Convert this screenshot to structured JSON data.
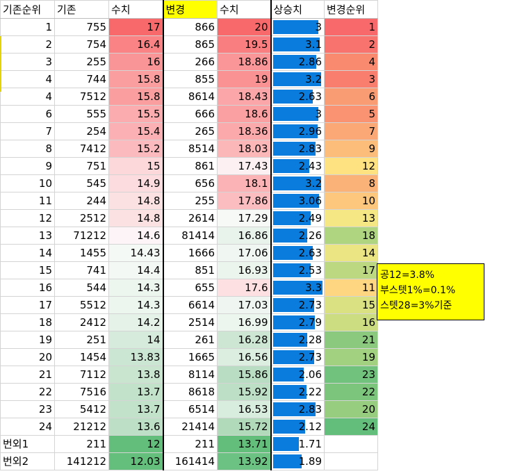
{
  "headers": [
    "기존순위",
    "기존",
    "수치",
    "변경",
    "수치",
    "상승치",
    "변경순위"
  ],
  "rows": [
    {
      "rank": "1",
      "orig": "755",
      "v1": "17",
      "new": "866",
      "v2": "20",
      "rise": "3",
      "newrank": "1",
      "rise_num": 3,
      "c1": "#f8696b",
      "c2": "#f8696b",
      "c3": "#f8696b"
    },
    {
      "rank": "2",
      "orig": "754",
      "v1": "16.4",
      "new": "865",
      "v2": "19.5",
      "rise": "3.1",
      "newrank": "2",
      "rise_num": 3.1,
      "c1": "#f98385",
      "c2": "#f97e80",
      "c3": "#f8736d"
    },
    {
      "rank": "3",
      "orig": "255",
      "v1": "16",
      "new": "266",
      "v2": "18.86",
      "rise": "2.86",
      "newrank": "4",
      "rise_num": 2.86,
      "c1": "#fa9597",
      "c2": "#fa9698",
      "c3": "#f98a70"
    },
    {
      "rank": "4",
      "orig": "744",
      "v1": "15.8",
      "new": "855",
      "v2": "19",
      "rise": "3.2",
      "newrank": "3",
      "rise_num": 3.2,
      "c1": "#fa9ea0",
      "c2": "#fa9193",
      "c3": "#f97e6e"
    },
    {
      "rank": "4",
      "orig": "7512",
      "v1": "15.8",
      "new": "8614",
      "v2": "18.43",
      "rise": "2.63",
      "newrank": "6",
      "rise_num": 2.63,
      "c1": "#fa9ea0",
      "c2": "#fba6a8",
      "c3": "#fa9c73"
    },
    {
      "rank": "6",
      "orig": "555",
      "v1": "15.5",
      "new": "666",
      "v2": "18.6",
      "rise": "3",
      "newrank": "5",
      "rise_num": 3,
      "c1": "#fbacae",
      "c2": "#fba0a2",
      "c3": "#f99372"
    },
    {
      "rank": "7",
      "orig": "254",
      "v1": "15.4",
      "new": "265",
      "v2": "18.36",
      "rise": "2.96",
      "newrank": "7",
      "rise_num": 2.96,
      "c1": "#fbb1b3",
      "c2": "#fba9ab",
      "c3": "#fba876"
    },
    {
      "rank": "8",
      "orig": "7412",
      "v1": "15.2",
      "new": "8514",
      "v2": "18.03",
      "rise": "2.83",
      "newrank": "9",
      "rise_num": 2.83,
      "c1": "#fbbabd",
      "c2": "#fbb6b8",
      "c3": "#fcbd7b"
    },
    {
      "rank": "9",
      "orig": "751",
      "v1": "15",
      "new": "861",
      "v2": "17.43",
      "rise": "2.43",
      "newrank": "12",
      "rise_num": 2.43,
      "c1": "#fcd8da",
      "c2": "#fcf0f2",
      "c3": "#fee282"
    },
    {
      "rank": "10",
      "orig": "545",
      "v1": "14.9",
      "new": "656",
      "v2": "18.1",
      "rise": "3.2",
      "newrank": "8",
      "rise_num": 3.2,
      "c1": "#fcdcde",
      "c2": "#fbb3b5",
      "c3": "#fbb278"
    },
    {
      "rank": "11",
      "orig": "244",
      "v1": "14.8",
      "new": "255",
      "v2": "17.86",
      "rise": "3.06",
      "newrank": "10",
      "rise_num": 3.06,
      "c1": "#fce1e3",
      "c2": "#fbbdc0",
      "c3": "#fdc87d"
    },
    {
      "rank": "12",
      "orig": "2512",
      "v1": "14.8",
      "new": "2614",
      "v2": "17.29",
      "rise": "2.49",
      "newrank": "13",
      "rise_num": 2.49,
      "c1": "#fce1e3",
      "c2": "#f7f9f7",
      "c3": "#f5e783"
    },
    {
      "rank": "13",
      "orig": "71212",
      "v1": "14.6",
      "new": "81414",
      "v2": "16.86",
      "rise": "2.26",
      "newrank": "18",
      "rise_num": 2.26,
      "c1": "#fcf4f6",
      "c2": "#e8f3eb",
      "c3": "#b0d580"
    },
    {
      "rank": "14",
      "orig": "1455",
      "v1": "14.43",
      "new": "1666",
      "v2": "17.06",
      "rise": "2.63",
      "newrank": "14",
      "rise_num": 2.63,
      "c1": "#f5f9f6",
      "c2": "#f0f7f2",
      "c3": "#ebe583"
    },
    {
      "rank": "15",
      "orig": "741",
      "v1": "14.4",
      "new": "851",
      "v2": "16.93",
      "rise": "2.53",
      "newrank": "17",
      "rise_num": 2.53,
      "c1": "#f3f8f4",
      "c2": "#ebf4ed",
      "c3": "#bcd881"
    },
    {
      "rank": "16",
      "orig": "544",
      "v1": "14.3",
      "new": "655",
      "v2": "17.6",
      "rise": "3.3",
      "newrank": "11",
      "rise_num": 3.3,
      "c1": "#ecf5ee",
      "c2": "#fce0e2",
      "c3": "#fed580"
    },
    {
      "rank": "17",
      "orig": "5512",
      "v1": "14.3",
      "new": "6614",
      "v2": "17.03",
      "rise": "2.73",
      "newrank": "15",
      "rise_num": 2.73,
      "c1": "#ecf5ee",
      "c2": "#eff6f1",
      "c3": "#dae182"
    },
    {
      "rank": "18",
      "orig": "2412",
      "v1": "14.2",
      "new": "2514",
      "v2": "16.99",
      "rise": "2.79",
      "newrank": "16",
      "rise_num": 2.79,
      "c1": "#e5f2e8",
      "c2": "#edf5ef",
      "c3": "#cbdc81"
    },
    {
      "rank": "19",
      "orig": "251",
      "v1": "14",
      "new": "261",
      "v2": "16.28",
      "rise": "2.28",
      "newrank": "21",
      "rise_num": 2.28,
      "c1": "#d7ebdc",
      "c2": "#cde6d3",
      "c3": "#8bc97e"
    },
    {
      "rank": "20",
      "orig": "1454",
      "v1": "13.83",
      "new": "1665",
      "v2": "16.56",
      "rise": "2.73",
      "newrank": "19",
      "rise_num": 2.73,
      "c1": "#cbe6d2",
      "c2": "#dbeee0",
      "c3": "#a2d17f"
    },
    {
      "rank": "21",
      "orig": "7112",
      "v1": "13.8",
      "new": "8114",
      "v2": "15.86",
      "rise": "2.06",
      "newrank": "23",
      "rise_num": 2.06,
      "c1": "#c9e5d0",
      "c2": "#b9ddc2",
      "c3": "#70c27c"
    },
    {
      "rank": "22",
      "orig": "7516",
      "v1": "13.7",
      "new": "8618",
      "v2": "15.92",
      "rise": "2.22",
      "newrank": "22",
      "rise_num": 2.22,
      "c1": "#c2e2ca",
      "c2": "#bcdfc5",
      "c3": "#7cc57d"
    },
    {
      "rank": "23",
      "orig": "5412",
      "v1": "13.7",
      "new": "6514",
      "v2": "16.53",
      "rise": "2.83",
      "newrank": "20",
      "rise_num": 2.83,
      "c1": "#c2e2ca",
      "c2": "#d9eddf",
      "c3": "#97cd7e"
    },
    {
      "rank": "24",
      "orig": "21212",
      "v1": "13.6",
      "new": "21414",
      "v2": "15.72",
      "rise": "2.12",
      "newrank": "24",
      "rise_num": 2.12,
      "c1": "#bcdfc5",
      "c2": "#b1dabb",
      "c3": "#63be7b"
    },
    {
      "rank": "번외1",
      "orig": "211",
      "v1": "12",
      "new": "211",
      "v2": "13.71",
      "rise": "1.71",
      "newrank": "",
      "rise_num": 1.71,
      "c1": "#63be7b",
      "c2": "#63be7b",
      "c3": "#ffffff"
    },
    {
      "rank": "번외2",
      "orig": "141212",
      "v1": "12.03",
      "new": "161414",
      "v2": "13.92",
      "rise": "1.89",
      "newrank": "",
      "rise_num": 1.89,
      "c1": "#65bf7c",
      "c2": "#6cc283",
      "c3": "#ffffff"
    }
  ],
  "rise_scale_max": 3.3,
  "bar_color": "#0a7cdd",
  "note": {
    "line1": "공12=3.8%",
    "line2": "부스텟1%=0.1%",
    "line3": "스텟28=3%기준"
  }
}
